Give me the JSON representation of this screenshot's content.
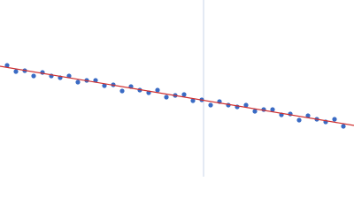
{
  "chart_data": {
    "type": "scatter",
    "x": [
      8,
      18,
      28,
      38,
      48,
      58,
      68,
      78,
      88,
      98,
      108,
      118,
      128,
      138,
      148,
      158,
      168,
      178,
      188,
      198,
      208,
      218,
      228,
      238,
      248,
      258,
      268,
      278,
      288,
      298,
      308,
      318,
      328,
      338,
      348,
      358,
      368,
      378,
      388
    ],
    "series": [
      {
        "color": "#3a6bc4",
        "values": [
          126,
          119,
          120,
          114,
          118,
          114,
          112,
          114,
          107,
          109,
          109,
          103,
          104,
          97,
          102,
          98,
          95,
          98,
          90,
          92,
          93,
          86,
          87,
          81,
          85,
          81,
          79,
          81,
          74,
          76,
          76,
          70,
          71,
          64,
          69,
          65,
          62,
          65,
          57
        ]
      }
    ],
    "fit": {
      "x": [
        0,
        400
      ],
      "values": [
        125,
        58
      ],
      "color": "#d03030"
    },
    "vline": {
      "x": 230,
      "color": "#c8d4ea"
    },
    "xlim": [
      0,
      400
    ],
    "ylim": [
      0,
      200
    ]
  }
}
